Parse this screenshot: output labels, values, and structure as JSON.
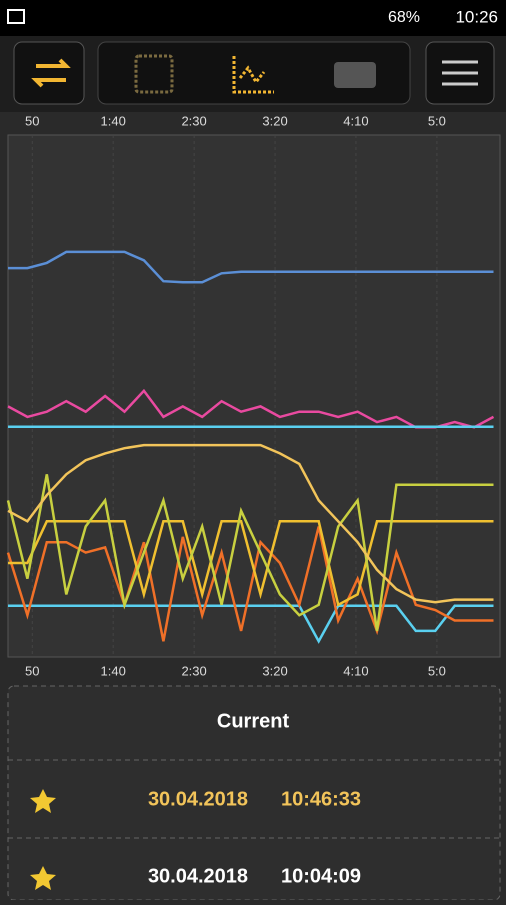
{
  "status_bar": {
    "battery": "68%",
    "time": "10:26"
  },
  "chart_data": {
    "type": "line",
    "grid": true,
    "x": [
      35,
      47,
      59,
      71,
      83,
      95,
      107,
      119,
      131,
      143,
      155,
      167,
      179,
      191,
      203,
      215,
      227,
      239,
      251,
      263,
      275,
      287,
      299,
      311,
      323,
      335
    ],
    "xlim": [
      35,
      339
    ],
    "xticks": [
      {
        "value": 50,
        "label": "50"
      },
      {
        "value": 100,
        "label": "1:40"
      },
      {
        "value": 150,
        "label": "2:30"
      },
      {
        "value": 200,
        "label": "3:20"
      },
      {
        "value": 250,
        "label": "4:10"
      },
      {
        "value": 300,
        "label": "5:0"
      }
    ],
    "ylim": [
      0,
      100
    ],
    "series": [
      {
        "color": "#5b8fd6",
        "values": [
          74.5,
          74.5,
          75.5,
          77.6,
          77.6,
          77.6,
          77.6,
          76,
          72,
          71.8,
          71.8,
          73.5,
          73.8,
          73.8,
          73.8,
          73.8,
          73.8,
          73.8,
          73.8,
          73.8,
          73.8,
          73.8,
          73.8,
          73.8,
          73.8,
          73.8
        ]
      },
      {
        "color": "#e94aa0",
        "values": [
          48,
          46,
          47,
          49,
          47,
          50,
          47,
          51,
          46,
          48,
          46,
          49,
          47,
          48,
          46,
          47,
          47,
          46,
          47,
          45,
          46,
          44,
          44,
          45,
          44,
          46
        ]
      },
      {
        "color": "#5ad0f0",
        "values": [
          44.1,
          44.1,
          44.1,
          44.1,
          44.1,
          44.1,
          44.1,
          44.1,
          44.1,
          44.1,
          44.1,
          44.1,
          44.1,
          44.1,
          44.1,
          44.1,
          44.1,
          44.1,
          44.1,
          44.1,
          44.1,
          44.1,
          44.1,
          44.1,
          44.1,
          44.1
        ]
      },
      {
        "color": "#5ad0f0",
        "values": [
          9.8,
          9.8,
          9.8,
          9.8,
          9.8,
          9.8,
          9.8,
          9.8,
          9.8,
          9.8,
          9.8,
          9.8,
          9.8,
          9.8,
          9.8,
          9.8,
          3,
          9.8,
          9.8,
          9.8,
          9.8,
          5,
          5,
          9.8,
          9.8,
          9.8
        ]
      },
      {
        "color": "#f07028",
        "values": [
          20,
          8,
          22,
          22,
          20,
          21,
          10,
          22,
          3,
          23,
          8,
          20,
          5,
          22,
          18,
          10,
          25,
          7,
          15,
          5,
          20,
          10,
          9,
          7,
          7,
          7
        ]
      },
      {
        "color": "#f0c030",
        "values": [
          18,
          18,
          26,
          26,
          26,
          26,
          26,
          12,
          26,
          26,
          12,
          26,
          26,
          12,
          26,
          26,
          26,
          10,
          12,
          26,
          26,
          26,
          26,
          26,
          26,
          26
        ]
      },
      {
        "color": "#c8d040",
        "values": [
          30,
          15,
          35,
          12,
          25,
          30,
          10,
          20,
          30,
          15,
          25,
          10,
          28,
          20,
          12,
          8,
          10,
          25,
          30,
          5,
          33,
          33,
          33,
          33,
          33,
          33
        ]
      },
      {
        "color": "#f2c45a",
        "values": [
          28,
          26,
          31,
          35,
          37.7,
          39,
          40,
          40.6,
          40.6,
          40.6,
          40.6,
          40.6,
          40.6,
          40.6,
          39,
          37,
          30,
          26,
          22,
          16.7,
          13,
          11,
          10.5,
          11,
          11,
          11
        ]
      }
    ]
  },
  "history": {
    "header": "Current",
    "rows": [
      {
        "date": "30.04.2018",
        "time": "10:46:33"
      },
      {
        "date": "30.04.2018",
        "time": "10:04:09"
      }
    ]
  }
}
